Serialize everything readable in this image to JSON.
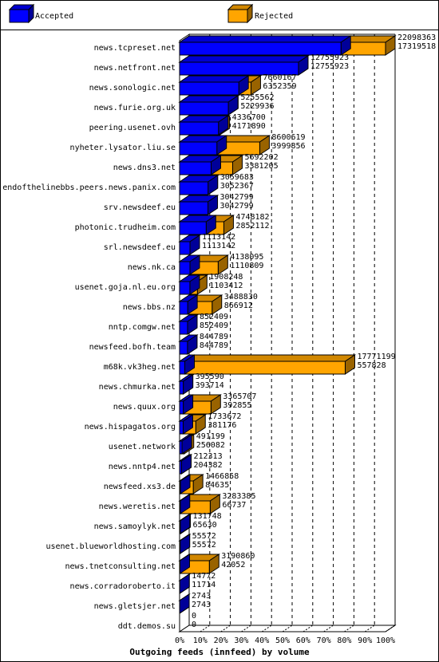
{
  "chart_data": {
    "type": "bar",
    "orientation": "horizontal",
    "stacking": "overlay-3d",
    "xlabel": "Outgoing feeds (innfeed) by volume",
    "xticks": [
      "0%",
      "10%",
      "20%",
      "30%",
      "40%",
      "50%",
      "60%",
      "70%",
      "80%",
      "90%",
      "100%"
    ],
    "xlim": [
      0,
      100
    ],
    "grid": true,
    "legend": [
      {
        "name": "Accepted",
        "color": "#0000ff"
      },
      {
        "name": "Rejected",
        "color": "#ffa500"
      }
    ],
    "max_total": 22098363,
    "categories": [
      "news.tcpreset.net",
      "news.netfront.net",
      "news.sonologic.net",
      "news.furie.org.uk",
      "peering.usenet.ovh",
      "nyheter.lysator.liu.se",
      "news.dns3.net",
      "endofthelinebbs.peers.news.panix.com",
      "srv.newsdeef.eu",
      "photonic.trudheim.com",
      "srl.newsdeef.eu",
      "news.nk.ca",
      "usenet.goja.nl.eu.org",
      "news.bbs.nz",
      "nntp.comgw.net",
      "newsfeed.bofh.team",
      "m68k.vk3heg.net",
      "news.chmurka.net",
      "news.quux.org",
      "news.hispagatos.org",
      "usenet.network",
      "news.nntp4.net",
      "newsfeed.xs3.de",
      "news.weretis.net",
      "news.samoylyk.net",
      "usenet.blueworldhosting.com",
      "news.tnetconsulting.net",
      "news.corradoroberto.it",
      "news.gletsjer.net",
      "ddt.demos.su"
    ],
    "totals": [
      22098363,
      12755923,
      7660167,
      5255562,
      4336700,
      8600619,
      5692202,
      3059683,
      3042799,
      4748182,
      1113142,
      4138095,
      1908248,
      3488830,
      852409,
      844789,
      17771199,
      395590,
      3365707,
      1733672,
      491199,
      212313,
      1466858,
      3283385,
      131748,
      55572,
      3190860,
      14772,
      2743,
      0
    ],
    "accepted": [
      17319518,
      12755923,
      6352359,
      5229936,
      4171890,
      3999856,
      3381205,
      3052367,
      3042799,
      2852112,
      1113142,
      1110809,
      1103412,
      866912,
      852409,
      844789,
      557828,
      393714,
      392855,
      381176,
      256082,
      204382,
      84635,
      66737,
      65630,
      55572,
      42052,
      11714,
      2743,
      0
    ]
  }
}
